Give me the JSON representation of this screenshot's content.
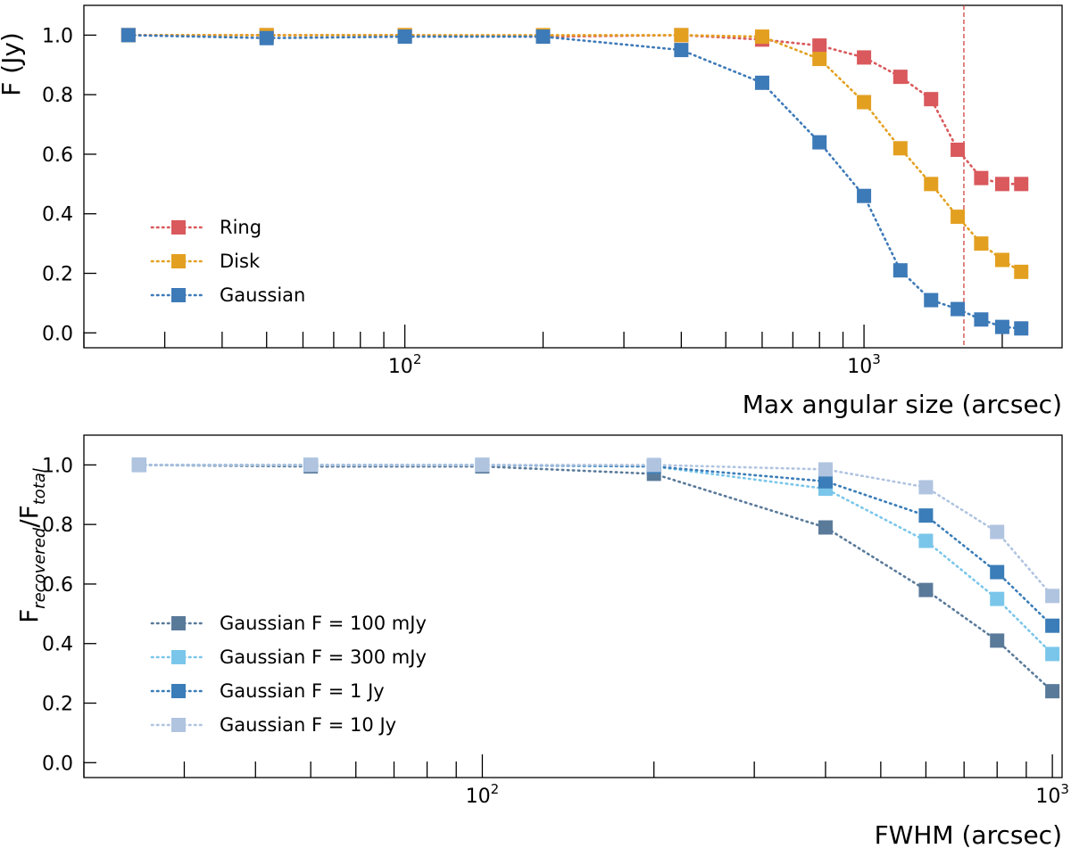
{
  "chart_data": [
    {
      "type": "line",
      "xscale": "log",
      "xlim": [
        20,
        2700
      ],
      "ylim": [
        -0.05,
        1.1
      ],
      "xlabel": "Max angular size (arcsec)",
      "ylabel": "F (Jy)",
      "yticks": [
        "0.0",
        "0.2",
        "0.4",
        "0.6",
        "0.8",
        "1.0"
      ],
      "xtick_labels": [
        {
          "value": 100,
          "base": "10",
          "exp": "2"
        },
        {
          "value": 1000,
          "base": "10",
          "exp": "3"
        }
      ],
      "vline": {
        "x": 1650,
        "color": "#cc3333",
        "style": "dashed"
      },
      "legend_position": "lower-left",
      "grid": false,
      "series": [
        {
          "name": "Ring",
          "color": "#d9595c",
          "x": [
            25,
            50,
            100,
            200,
            400,
            600,
            800,
            1000,
            1200,
            1400,
            1600,
            1800,
            2000,
            2200
          ],
          "y": [
            1.0,
            1.0,
            1.0,
            0.995,
            1.0,
            0.985,
            0.965,
            0.925,
            0.86,
            0.785,
            0.615,
            0.52,
            0.5,
            0.5
          ]
        },
        {
          "name": "Disk",
          "color": "#e3a020",
          "x": [
            25,
            50,
            100,
            200,
            400,
            600,
            800,
            1000,
            1200,
            1400,
            1600,
            1800,
            2000,
            2200
          ],
          "y": [
            1.0,
            1.0,
            1.0,
            1.0,
            1.0,
            0.995,
            0.92,
            0.775,
            0.62,
            0.5,
            0.39,
            0.3,
            0.245,
            0.205
          ]
        },
        {
          "name": "Gaussian",
          "color": "#3d7ab8",
          "x": [
            25,
            50,
            100,
            200,
            400,
            600,
            800,
            1000,
            1200,
            1400,
            1600,
            1800,
            2000,
            2200
          ],
          "y": [
            1.0,
            0.99,
            0.995,
            0.995,
            0.95,
            0.84,
            0.64,
            0.46,
            0.21,
            0.11,
            0.08,
            0.045,
            0.02,
            0.015
          ]
        }
      ]
    },
    {
      "type": "line",
      "xscale": "log",
      "xlim": [
        20,
        1040
      ],
      "ylim": [
        -0.05,
        1.1
      ],
      "xlabel": "FWHM (arcsec)",
      "ylabel": {
        "base": "F",
        "sub1": "recovered",
        "sep": "/F",
        "sub2": "total"
      },
      "yticks": [
        "0.0",
        "0.2",
        "0.4",
        "0.6",
        "0.8",
        "1.0"
      ],
      "xtick_labels": [
        {
          "value": 100,
          "base": "10",
          "exp": "2"
        },
        {
          "value": 1000,
          "base": "10",
          "exp": "3"
        }
      ],
      "legend_position": "lower-left",
      "grid": false,
      "series": [
        {
          "name": "Gaussian F = 100 mJy",
          "color": "#5a7a9a",
          "x": [
            25,
            50,
            100,
            200,
            400,
            600,
            800,
            1000
          ],
          "y": [
            1.0,
            0.995,
            0.995,
            0.97,
            0.79,
            0.58,
            0.41,
            0.24
          ]
        },
        {
          "name": "Gaussian F = 300 mJy",
          "color": "#7ac6ea",
          "x": [
            25,
            50,
            100,
            200,
            400,
            600,
            800,
            1000
          ],
          "y": [
            1.0,
            1.0,
            1.0,
            0.995,
            0.92,
            0.745,
            0.55,
            0.365
          ]
        },
        {
          "name": "Gaussian F = 1 Jy",
          "color": "#3a7db8",
          "x": [
            25,
            50,
            100,
            200,
            400,
            600,
            800,
            1000
          ],
          "y": [
            1.0,
            1.0,
            1.0,
            0.995,
            0.945,
            0.83,
            0.64,
            0.46
          ]
        },
        {
          "name": "Gaussian F = 10 Jy",
          "color": "#b0c4e0",
          "x": [
            25,
            50,
            100,
            200,
            400,
            600,
            800,
            1000
          ],
          "y": [
            1.0,
            1.0,
            1.0,
            1.0,
            0.985,
            0.925,
            0.775,
            0.56
          ]
        }
      ]
    }
  ]
}
